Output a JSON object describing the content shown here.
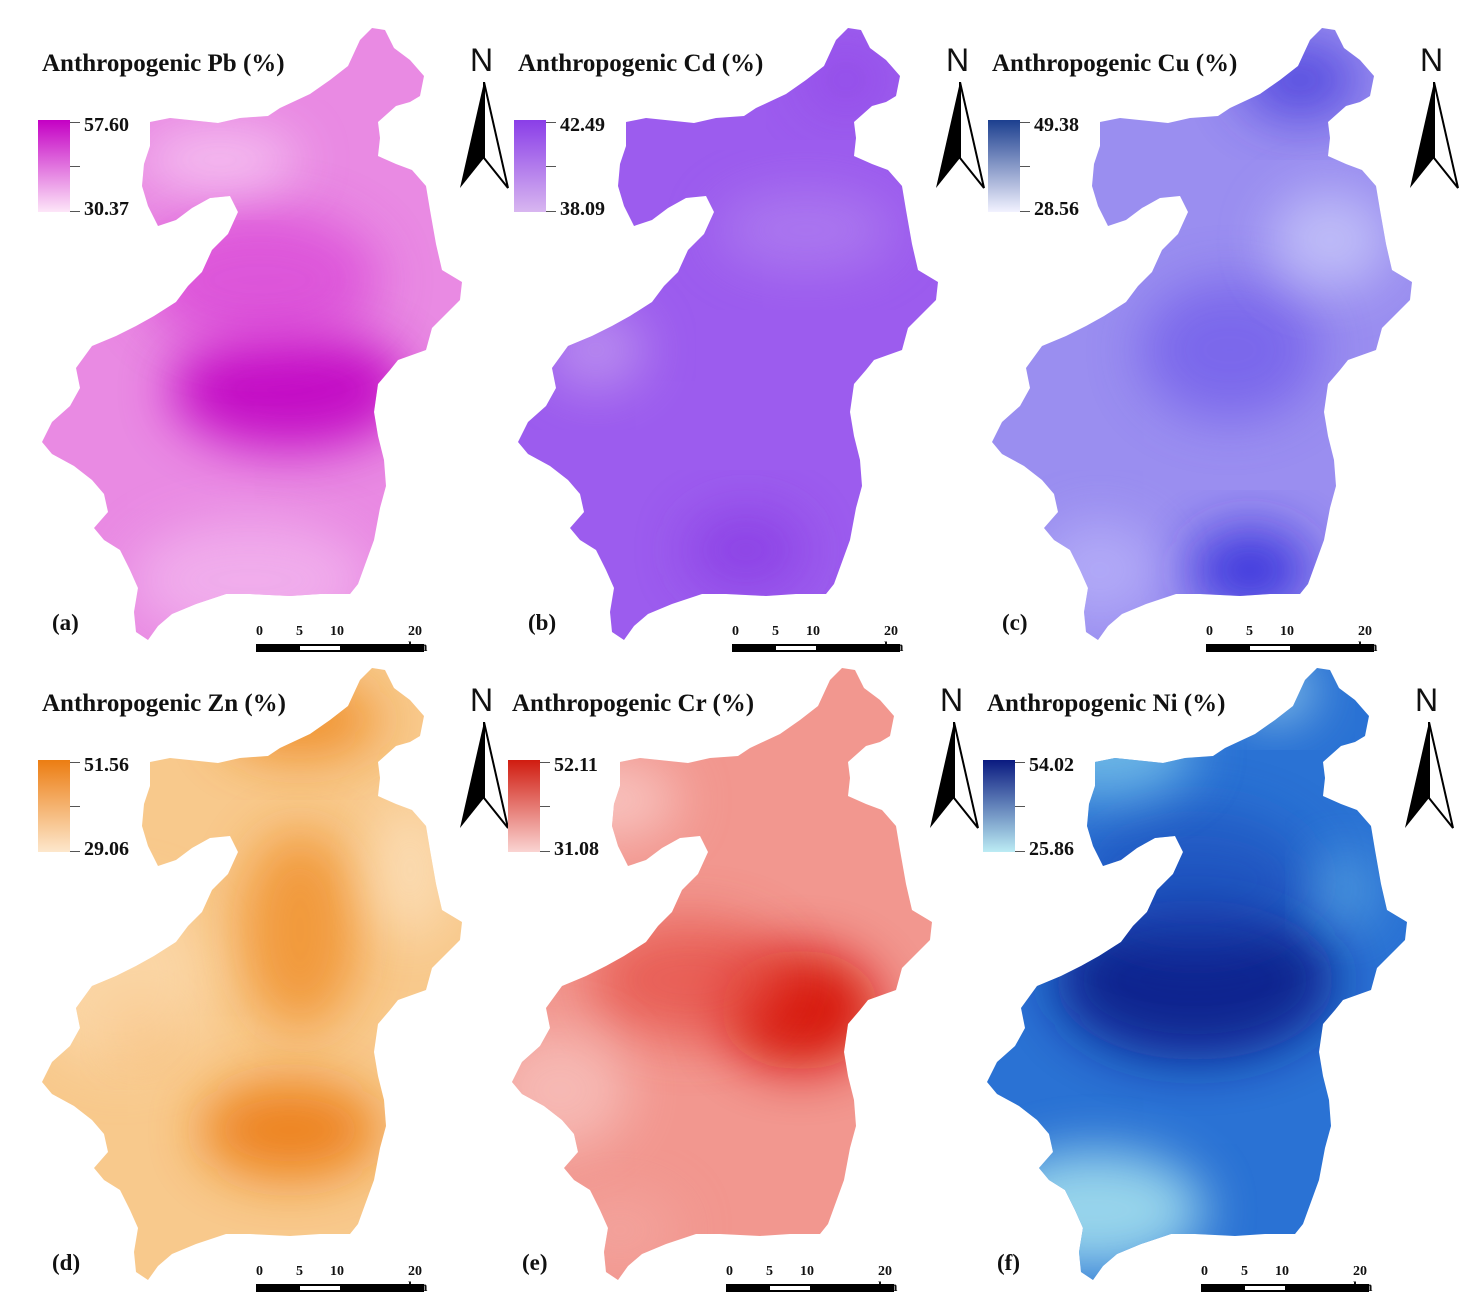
{
  "north_label": "N",
  "scale": {
    "t0": "0",
    "t5": "5",
    "t10": "10",
    "t20": "20 km"
  },
  "panels": [
    {
      "letter": "(a)",
      "title": "Anthropogenic Pb (%)",
      "max": "57.60",
      "min": "30.37",
      "low_color": "#fde6f8",
      "high_color": "#c400c4"
    },
    {
      "letter": "(b)",
      "title": "Anthropogenic Cd (%)",
      "max": "42.49",
      "min": "38.09",
      "low_color": "#d8b6f0",
      "high_color": "#8a3ee8"
    },
    {
      "letter": "(c)",
      "title": "Anthropogenic Cu (%)",
      "max": "49.38",
      "min": "28.56",
      "low_color": "#f2f2ff",
      "high_color": "#1c3f8f"
    },
    {
      "letter": "(d)",
      "title": "Anthropogenic Zn (%)",
      "max": "51.56",
      "min": "29.06",
      "low_color": "#fde7cc",
      "high_color": "#ec7d12"
    },
    {
      "letter": "(e)",
      "title": "Anthropogenic Cr (%)",
      "max": "52.11",
      "min": "31.08",
      "low_color": "#fad4d2",
      "high_color": "#d01c10"
    },
    {
      "letter": "(f)",
      "title": "Anthropogenic Ni (%)",
      "max": "54.02",
      "min": "25.86",
      "low_color": "#bcecf4",
      "high_color": "#0a1a80"
    }
  ]
}
